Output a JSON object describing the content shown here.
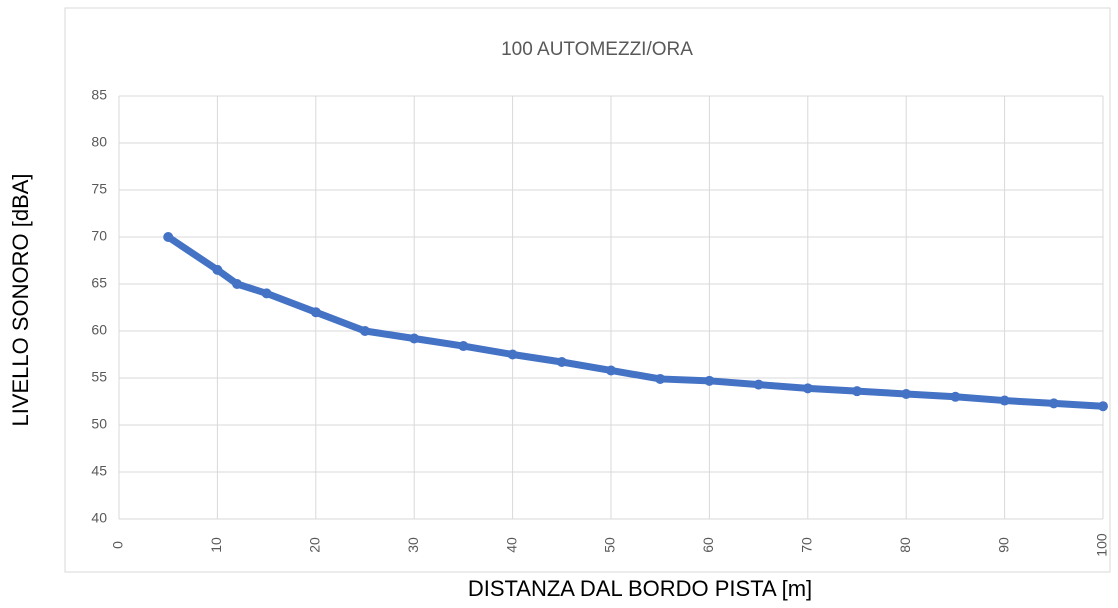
{
  "chart_data": {
    "type": "line",
    "title": "100 AUTOMEZZI/ORA",
    "x_label": "DISTANZA DAL BORDO PISTA [m]",
    "y_label": "LIVELLO SONORO [dBA]",
    "x": [
      5,
      10,
      12,
      15,
      20,
      25,
      30,
      35,
      40,
      45,
      50,
      55,
      60,
      65,
      70,
      75,
      80,
      85,
      90,
      95,
      100
    ],
    "series": [
      {
        "name": "100 AUTOMEZZI/ORA",
        "color": "#4472c4",
        "values": [
          70,
          66.5,
          65,
          64,
          62,
          60,
          59.2,
          58.4,
          57.5,
          56.7,
          55.8,
          54.9,
          54.7,
          54.3,
          53.9,
          53.6,
          53.3,
          53,
          52.6,
          52.3,
          52
        ]
      }
    ],
    "xlim": [
      0,
      100
    ],
    "xticks": [
      0,
      10,
      20,
      30,
      40,
      50,
      60,
      70,
      80,
      90,
      100
    ],
    "ylim": [
      40,
      85
    ],
    "yticks": [
      40,
      45,
      50,
      55,
      60,
      65,
      70,
      75,
      80,
      85
    ],
    "grid": true
  }
}
